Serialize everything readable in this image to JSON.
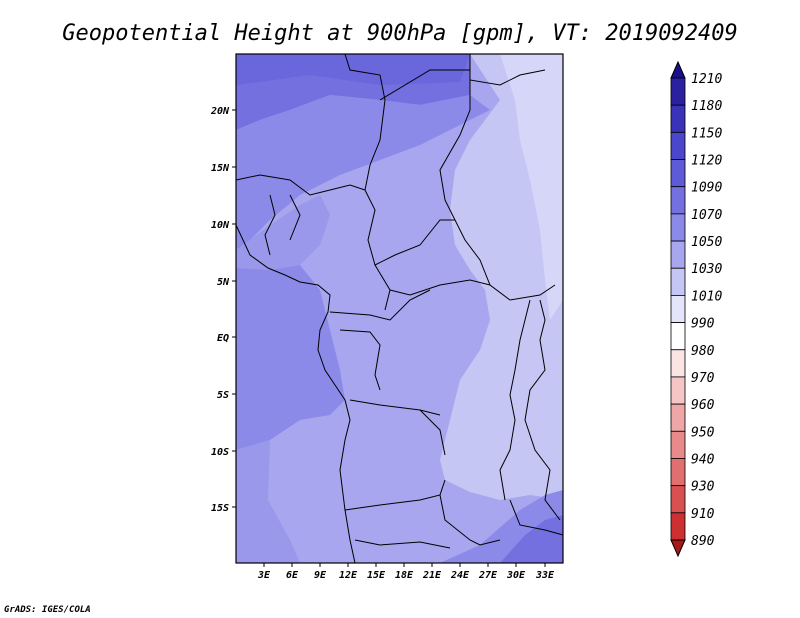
{
  "title": "Geopotential Height at 900hPa [gpm], VT: 2019092409",
  "credit": "GrADS: IGES/COLA",
  "map": {
    "lat_labels": [
      "20N",
      "15N",
      "10N",
      "5N",
      "EQ",
      "5S",
      "10S",
      "15S"
    ],
    "lon_labels": [
      "3E",
      "6E",
      "9E",
      "12E",
      "15E",
      "18E",
      "21E",
      "24E",
      "27E",
      "30E",
      "33E"
    ]
  },
  "colorbar": {
    "levels": [
      "1210",
      "1180",
      "1150",
      "1120",
      "1090",
      "1070",
      "1050",
      "1030",
      "1010",
      "990",
      "980",
      "970",
      "960",
      "950",
      "940",
      "930",
      "910",
      "890"
    ],
    "colors": [
      "#1a0f8a",
      "#2a20a0",
      "#3a32b8",
      "#4c46cc",
      "#5f5ad8",
      "#7470e0",
      "#8c8ae8",
      "#a7a6ee",
      "#c6c6f5",
      "#e4e4fb",
      "#ffffff",
      "#fbe4e4",
      "#f6c6c6",
      "#efa6a6",
      "#e88a8a",
      "#e06f6f",
      "#d85050",
      "#cc3030",
      "#a81818"
    ]
  }
}
